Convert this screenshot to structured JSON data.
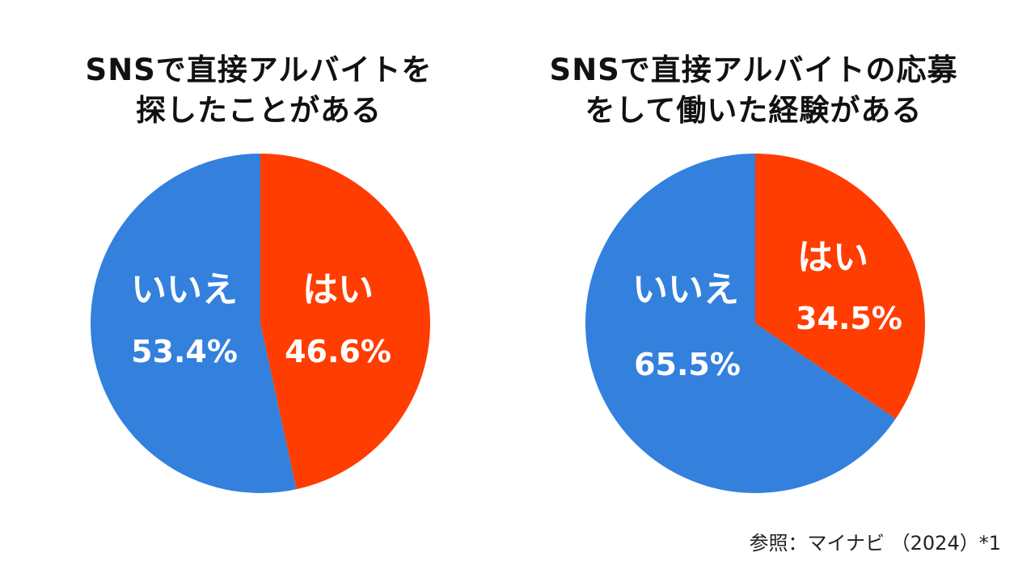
{
  "colors": {
    "yes": "#FF3D00",
    "no": "#3380DD",
    "label": "#FFFFFF"
  },
  "chart_data": [
    {
      "type": "pie",
      "title_lines": [
        "SNSで直接アルバイトを",
        "探したことがある"
      ],
      "slices": [
        {
          "label": "はい",
          "value": 46.6,
          "display": "46.6%",
          "color": "#FF3D00"
        },
        {
          "label": "いいえ",
          "value": 53.4,
          "display": "53.4%",
          "color": "#3380DD"
        }
      ]
    },
    {
      "type": "pie",
      "title_lines": [
        "SNSで直接アルバイトの応募",
        "をして働いた経験がある"
      ],
      "slices": [
        {
          "label": "はい",
          "value": 34.5,
          "display": "34.5%",
          "color": "#FF3D00"
        },
        {
          "label": "いいえ",
          "value": 65.5,
          "display": "65.5%",
          "color": "#3380DD"
        }
      ]
    }
  ],
  "source": "参照：マイナビ （2024）*1"
}
